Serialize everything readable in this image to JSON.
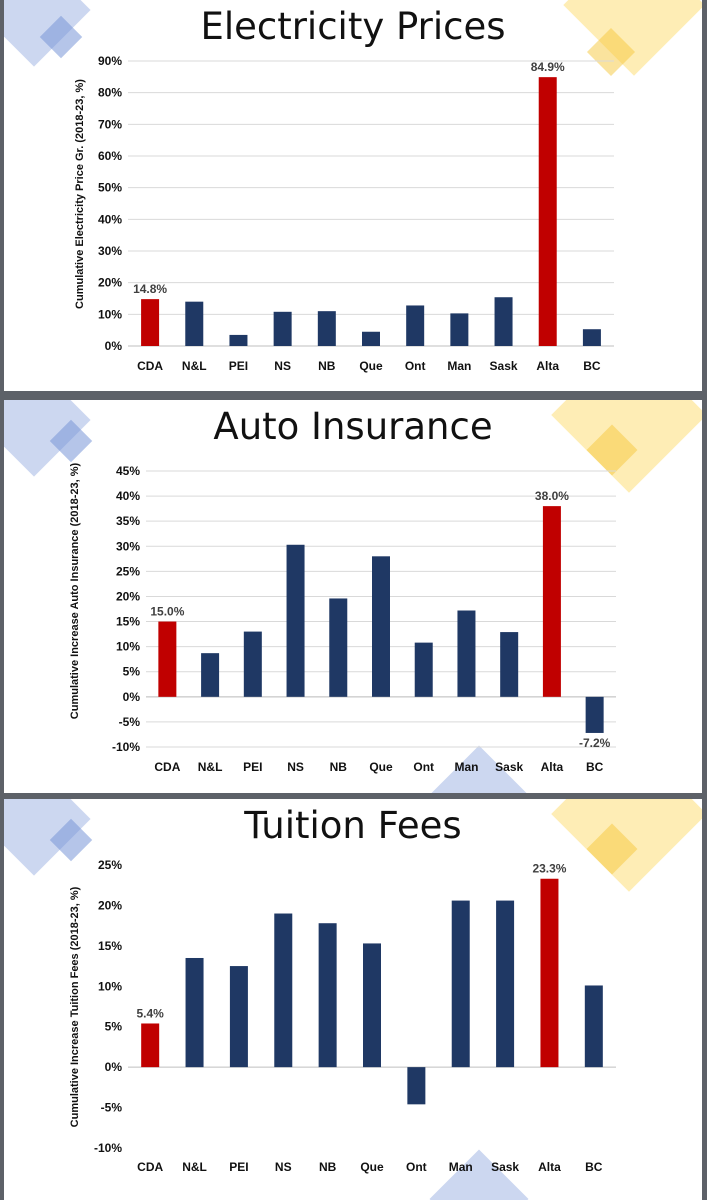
{
  "colors": {
    "highlight": "#c00000",
    "bar": "#1f3864",
    "grid": "#d9d9d9",
    "axis": "#bfbfbf"
  },
  "chart_data": [
    {
      "type": "bar",
      "title": "Electricity Prices",
      "ylabel": "Cumulative Electricity Price Gr. (2018-23, %)",
      "categories": [
        "CDA",
        "N&L",
        "PEI",
        "NS",
        "NB",
        "Que",
        "Ont",
        "Man",
        "Sask",
        "Alta",
        "BC"
      ],
      "values": [
        14.8,
        14.0,
        3.5,
        10.8,
        11.0,
        4.5,
        12.8,
        10.3,
        15.4,
        84.9,
        5.3
      ],
      "highlight": [
        "CDA",
        "Alta"
      ],
      "data_labels": {
        "CDA": "14.8%",
        "Alta": "84.9%"
      },
      "ylim": [
        0,
        90
      ],
      "yticks": [
        0,
        10,
        20,
        30,
        40,
        50,
        60,
        70,
        80,
        90
      ],
      "ytick_labels": [
        "0%",
        "10%",
        "20%",
        "30%",
        "40%",
        "50%",
        "60%",
        "70%",
        "80%",
        "90%"
      ],
      "grid": true
    },
    {
      "type": "bar",
      "title": "Auto Insurance",
      "ylabel": "Cumulative Increase Auto Insurance (2018-23, %)",
      "categories": [
        "CDA",
        "N&L",
        "PEI",
        "NS",
        "NB",
        "Que",
        "Ont",
        "Man",
        "Sask",
        "Alta",
        "BC"
      ],
      "values": [
        15.0,
        8.7,
        13.0,
        30.3,
        19.6,
        28.0,
        10.8,
        17.2,
        12.9,
        38.0,
        -7.2
      ],
      "highlight": [
        "CDA",
        "Alta"
      ],
      "data_labels": {
        "CDA": "15.0%",
        "Alta": "38.0%",
        "BC": "-7.2%"
      },
      "ylim": [
        -10,
        45
      ],
      "yticks": [
        -10,
        -5,
        0,
        5,
        10,
        15,
        20,
        25,
        30,
        35,
        40,
        45
      ],
      "ytick_labels": [
        "-10%",
        "-5%",
        "0%",
        "5%",
        "10%",
        "15%",
        "20%",
        "25%",
        "30%",
        "35%",
        "40%",
        "45%"
      ],
      "grid": true
    },
    {
      "type": "bar",
      "title": "Tuition Fees",
      "ylabel": "Cumulative Increase Tuition Fees (2018-23, %)",
      "categories": [
        "CDA",
        "N&L",
        "PEI",
        "NS",
        "NB",
        "Que",
        "Ont",
        "Man",
        "Sask",
        "Alta",
        "BC"
      ],
      "values": [
        5.4,
        13.5,
        12.5,
        19.0,
        17.8,
        15.3,
        -4.6,
        20.6,
        20.6,
        23.3,
        10.1
      ],
      "highlight": [
        "CDA",
        "Alta"
      ],
      "data_labels": {
        "CDA": "5.4%",
        "Alta": "23.3%"
      },
      "ylim": [
        -10,
        25
      ],
      "yticks": [
        -10,
        -5,
        0,
        5,
        10,
        15,
        20,
        25
      ],
      "ytick_labels": [
        "-10%",
        "-5%",
        "0%",
        "5%",
        "10%",
        "15%",
        "20%",
        "25%"
      ],
      "grid": false
    }
  ]
}
